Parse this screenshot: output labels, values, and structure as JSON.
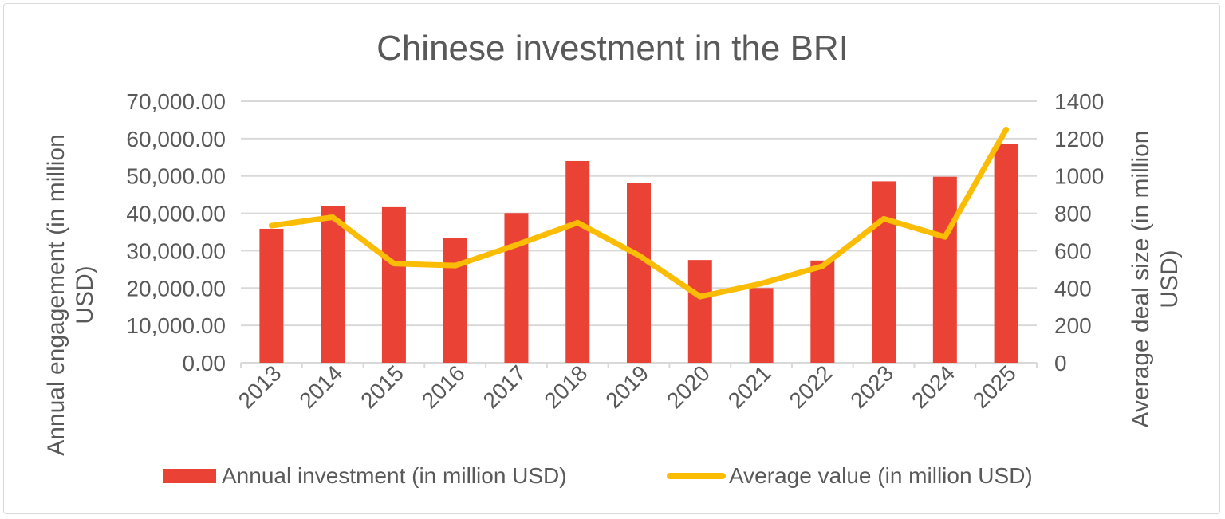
{
  "chart_data": {
    "type": "bar+line",
    "title": "Chinese investment in the BRI",
    "categories": [
      "2013",
      "2014",
      "2015",
      "2016",
      "2017",
      "2018",
      "2019",
      "2020",
      "2021",
      "2022",
      "2023",
      "2024",
      "2025"
    ],
    "series": [
      {
        "name": "Annual investment (in million USD)",
        "type": "bar",
        "axis": "left",
        "color": "#EA4335",
        "values": [
          35860,
          42000,
          41640,
          33500,
          40070,
          54000,
          48140,
          27500,
          20000,
          27360,
          48570,
          49790,
          58500
        ]
      },
      {
        "name": "Average value (in million USD)",
        "type": "line",
        "axis": "right",
        "color": "#FBBC04",
        "values": [
          734,
          779,
          531,
          520,
          631,
          750,
          575,
          354,
          424,
          517,
          771,
          674,
          1249
        ]
      }
    ],
    "ylabel": "Annual engagement (in million USD)",
    "y2label": "Average deal size (in million USD)",
    "ylim": [
      0,
      70000
    ],
    "y2lim": [
      0,
      1400
    ],
    "yticks": [
      "0.00",
      "10,000.00",
      "20,000.00",
      "30,000.00",
      "40,000.00",
      "50,000.00",
      "60,000.00",
      "70,000.00"
    ],
    "y2ticks": [
      "0",
      "200",
      "400",
      "600",
      "800",
      "1000",
      "1200",
      "1400"
    ],
    "grid": true,
    "legend": "bottom"
  }
}
